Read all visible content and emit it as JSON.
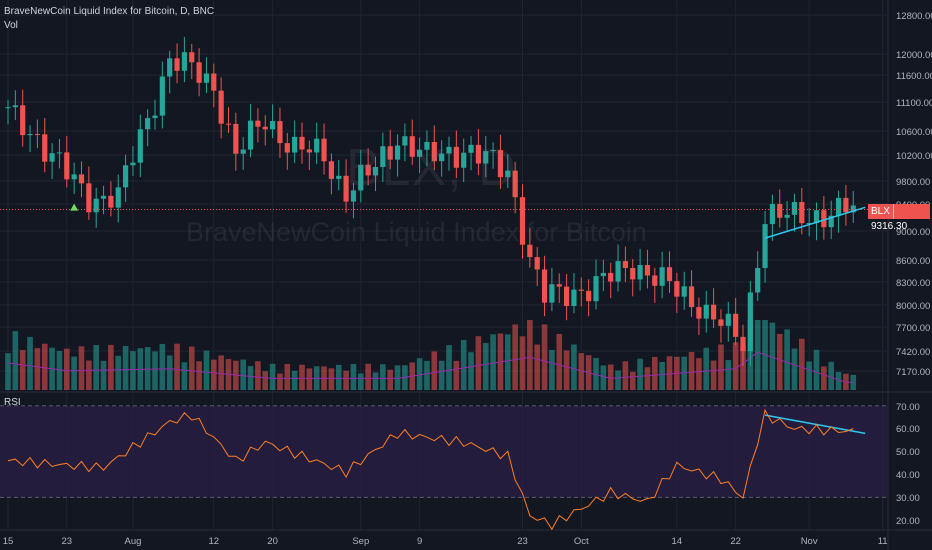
{
  "header": {
    "title": "BraveNewCoin Liquid Index for Bitcoin, D, BNC",
    "vol_label": "Vol",
    "rsi_label": "RSI"
  },
  "watermark": {
    "symbol": "BLX, D",
    "name": "BraveNewCoin Liquid Index for Bitcoin"
  },
  "price_tag": {
    "symbol": "BLX",
    "value": "9316.30"
  },
  "colors": {
    "background": "#131722",
    "up": "#26a69a",
    "down": "#ef5350",
    "trendline": "#2ec7f0",
    "rsi_line": "#ff7f23",
    "rsi_band": "#2a1f45",
    "vol_ma": "#9c27b0"
  },
  "chart_data": [
    {
      "type": "candlestick",
      "title": "BraveNewCoin Liquid Index for Bitcoin, D, BNC",
      "xlabel": "",
      "ylabel": "",
      "y_scale": "log",
      "ylim": [
        6800,
        12900
      ],
      "y_ticks": [
        "12800.00",
        "12000.00",
        "11600.00",
        "11100.00",
        "10600.00",
        "10200.00",
        "9800.00",
        "9400.00",
        "9000.00",
        "8600.00",
        "8300.00",
        "8000.00",
        "7700.00",
        "7420.00",
        "7170.00"
      ],
      "x_ticks": [
        "15",
        "23",
        "Aug",
        "12",
        "20",
        "Sep",
        "9",
        "23",
        "Oct",
        "14",
        "22",
        "Nov",
        "11"
      ],
      "date_range": [
        "2019-07-15",
        "2019-11-07"
      ],
      "last_price": 9316.3,
      "grid": true,
      "annotations": [
        "ascending trendline under late-October consolidation",
        "green up-arrow marker near Jul 23"
      ],
      "anchors": [
        {
          "date": "2019-07-15",
          "close": 10900
        },
        {
          "date": "2019-07-19",
          "close": 10500
        },
        {
          "date": "2019-07-23",
          "close": 9900
        },
        {
          "date": "2019-07-26",
          "close": 9500
        },
        {
          "date": "2019-07-30",
          "close": 9550
        },
        {
          "date": "2019-08-03",
          "close": 10800
        },
        {
          "date": "2019-08-06",
          "close": 11900
        },
        {
          "date": "2019-08-09",
          "close": 11700
        },
        {
          "date": "2019-08-12",
          "close": 11400
        },
        {
          "date": "2019-08-15",
          "close": 10200
        },
        {
          "date": "2019-08-19",
          "close": 10800
        },
        {
          "date": "2019-08-23",
          "close": 10300
        },
        {
          "date": "2019-08-27",
          "close": 10200
        },
        {
          "date": "2019-08-30",
          "close": 9600
        },
        {
          "date": "2019-09-03",
          "close": 10000
        },
        {
          "date": "2019-09-06",
          "close": 10500
        },
        {
          "date": "2019-09-10",
          "close": 10150
        },
        {
          "date": "2019-09-15",
          "close": 10300
        },
        {
          "date": "2019-09-21",
          "close": 9950
        },
        {
          "date": "2019-09-24",
          "close": 8600
        },
        {
          "date": "2019-09-26",
          "close": 8100
        },
        {
          "date": "2019-10-03",
          "close": 8250
        },
        {
          "date": "2019-10-08",
          "close": 8550
        },
        {
          "date": "2019-10-12",
          "close": 8300
        },
        {
          "date": "2019-10-17",
          "close": 8000
        },
        {
          "date": "2019-10-23",
          "close": 7500
        },
        {
          "date": "2019-10-25",
          "close": 8650
        },
        {
          "date": "2019-10-26",
          "close": 9250
        },
        {
          "date": "2019-10-30",
          "close": 9200
        },
        {
          "date": "2019-11-03",
          "close": 9250
        },
        {
          "date": "2019-11-06",
          "close": 9316
        }
      ]
    },
    {
      "type": "bar",
      "title": "Vol",
      "description": "daily volume bars coloured by candle direction, spike on Sep 24 and Oct 25",
      "anchors": [
        {
          "date": "2019-07-15",
          "volume": 0.7
        },
        {
          "date": "2019-07-23",
          "volume": 0.5
        },
        {
          "date": "2019-08-06",
          "volume": 0.55
        },
        {
          "date": "2019-08-20",
          "volume": 0.3
        },
        {
          "date": "2019-09-06",
          "volume": 0.3
        },
        {
          "date": "2019-09-24",
          "volume": 0.85
        },
        {
          "date": "2019-10-05",
          "volume": 0.3
        },
        {
          "date": "2019-10-22",
          "volume": 0.55
        },
        {
          "date": "2019-10-25",
          "volume": 0.98
        },
        {
          "date": "2019-11-06",
          "volume": 0.2
        }
      ]
    },
    {
      "type": "line",
      "title": "RSI",
      "ylim": [
        15,
        75
      ],
      "y_ticks": [
        "70.00",
        "60.00",
        "50.00",
        "40.00",
        "30.00",
        "20.00"
      ],
      "bands": [
        30,
        70
      ],
      "anchors": [
        {
          "date": "2019-07-15",
          "value": 46
        },
        {
          "date": "2019-07-23",
          "value": 44
        },
        {
          "date": "2019-07-28",
          "value": 43
        },
        {
          "date": "2019-08-06",
          "value": 63
        },
        {
          "date": "2019-08-09",
          "value": 66
        },
        {
          "date": "2019-08-15",
          "value": 46
        },
        {
          "date": "2019-08-19",
          "value": 54
        },
        {
          "date": "2019-08-30",
          "value": 41
        },
        {
          "date": "2019-09-06",
          "value": 58
        },
        {
          "date": "2019-09-15",
          "value": 54
        },
        {
          "date": "2019-09-21",
          "value": 48
        },
        {
          "date": "2019-09-24",
          "value": 22
        },
        {
          "date": "2019-09-27",
          "value": 18
        },
        {
          "date": "2019-10-05",
          "value": 32
        },
        {
          "date": "2019-10-10",
          "value": 28
        },
        {
          "date": "2019-10-14",
          "value": 44
        },
        {
          "date": "2019-10-20",
          "value": 38
        },
        {
          "date": "2019-10-23",
          "value": 30
        },
        {
          "date": "2019-10-25",
          "value": 55
        },
        {
          "date": "2019-10-26",
          "value": 66
        },
        {
          "date": "2019-10-30",
          "value": 60
        },
        {
          "date": "2019-11-06",
          "value": 59
        }
      ]
    }
  ]
}
